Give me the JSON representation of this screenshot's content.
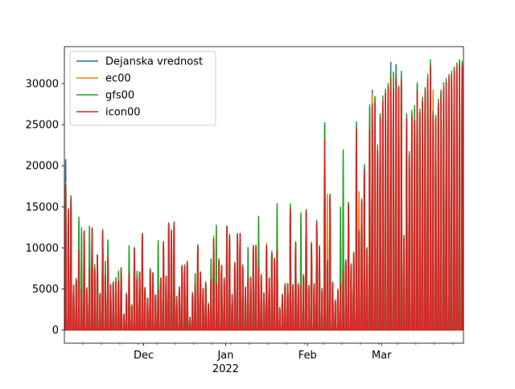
{
  "chart_data": {
    "type": "line",
    "x_start": "2021-11-01",
    "x_end": "2022-03-31",
    "ylim": [
      -1600,
      34500
    ],
    "y_ticks": [
      0,
      5000,
      10000,
      15000,
      20000,
      25000,
      30000
    ],
    "y_tick_labels": [
      "0",
      "5000",
      "10000",
      "15000",
      "20000",
      "25000",
      "30000"
    ],
    "x_major_ticks": [
      {
        "date": "2021-12-01",
        "label": "Dec",
        "sublabel": ""
      },
      {
        "date": "2022-01-01",
        "label": "Jan",
        "sublabel": "2022"
      },
      {
        "date": "2022-02-01",
        "label": "Feb",
        "sublabel": ""
      },
      {
        "date": "2022-03-01",
        "label": "Mar",
        "sublabel": ""
      }
    ],
    "legend_position": "upper-left",
    "grid": false,
    "series": [
      {
        "name": "Dejanska vrednost",
        "color": "#1f77b4"
      },
      {
        "name": "ec00",
        "color": "#ff7f0e"
      },
      {
        "name": "gfs00",
        "color": "#2ca02c"
      },
      {
        "name": "icon00",
        "color": "#d62728"
      }
    ],
    "daily_peak_estimates": {
      "dates": [
        "2021-11-01",
        "2021-11-02",
        "2021-11-03",
        "2021-11-04",
        "2021-11-05",
        "2021-11-06",
        "2021-11-07",
        "2021-11-08",
        "2021-11-09",
        "2021-11-10",
        "2021-11-11",
        "2021-11-12",
        "2021-11-13",
        "2021-11-14",
        "2021-11-15",
        "2021-11-16",
        "2021-11-17",
        "2021-11-18",
        "2021-11-19",
        "2021-11-20",
        "2021-11-21",
        "2021-11-22",
        "2021-11-23",
        "2021-11-24",
        "2021-11-25",
        "2021-11-26",
        "2021-11-27",
        "2021-11-28",
        "2021-11-29",
        "2021-11-30",
        "2021-12-01",
        "2021-12-02",
        "2021-12-03",
        "2021-12-04",
        "2021-12-05",
        "2021-12-06",
        "2021-12-07",
        "2021-12-08",
        "2021-12-09",
        "2021-12-10",
        "2021-12-11",
        "2021-12-12",
        "2021-12-13",
        "2021-12-14",
        "2021-12-15",
        "2021-12-16",
        "2021-12-17",
        "2021-12-18",
        "2021-12-19",
        "2021-12-20",
        "2021-12-21",
        "2021-12-22",
        "2021-12-23",
        "2021-12-24",
        "2021-12-25",
        "2021-12-26",
        "2021-12-27",
        "2021-12-28",
        "2021-12-29",
        "2021-12-30",
        "2021-12-31",
        "2022-01-01",
        "2022-01-02",
        "2022-01-03",
        "2022-01-04",
        "2022-01-05",
        "2022-01-06",
        "2022-01-07",
        "2022-01-08",
        "2022-01-09",
        "2022-01-10",
        "2022-01-11",
        "2022-01-12",
        "2022-01-13",
        "2022-01-14",
        "2022-01-15",
        "2022-01-16",
        "2022-01-17",
        "2022-01-18",
        "2022-01-19",
        "2022-01-20",
        "2022-01-21",
        "2022-01-22",
        "2022-01-23",
        "2022-01-24",
        "2022-01-25",
        "2022-01-26",
        "2022-01-27",
        "2022-01-28",
        "2022-01-29",
        "2022-01-30",
        "2022-01-31",
        "2022-02-01",
        "2022-02-02",
        "2022-02-03",
        "2022-02-04",
        "2022-02-05",
        "2022-02-06",
        "2022-02-07",
        "2022-02-08",
        "2022-02-09",
        "2022-02-10",
        "2022-02-11",
        "2022-02-12",
        "2022-02-13",
        "2022-02-14",
        "2022-02-15",
        "2022-02-16",
        "2022-02-17",
        "2022-02-18",
        "2022-02-19",
        "2022-02-20",
        "2022-02-21",
        "2022-02-22",
        "2022-02-23",
        "2022-02-24",
        "2022-02-25",
        "2022-02-26",
        "2022-02-27",
        "2022-02-28",
        "2022-03-01",
        "2022-03-02",
        "2022-03-03",
        "2022-03-04",
        "2022-03-05",
        "2022-03-06",
        "2022-03-07",
        "2022-03-08",
        "2022-03-09",
        "2022-03-10",
        "2022-03-11",
        "2022-03-12",
        "2022-03-13",
        "2022-03-14",
        "2022-03-15",
        "2022-03-16",
        "2022-03-17",
        "2022-03-18",
        "2022-03-19",
        "2022-03-20",
        "2022-03-21",
        "2022-03-22",
        "2022-03-23",
        "2022-03-24",
        "2022-03-25",
        "2022-03-26",
        "2022-03-27",
        "2022-03-28",
        "2022-03-29",
        "2022-03-30",
        "2022-03-31"
      ],
      "Dejanska vrednost": [
        20800,
        14800,
        16000,
        5500,
        6200,
        9700,
        5200,
        12000,
        5100,
        7800,
        12500,
        7600,
        9200,
        4500,
        12000,
        6800,
        9000,
        5500,
        5800,
        5900,
        6000,
        7600,
        1900,
        4400,
        7000,
        3000,
        10000,
        6300,
        7000,
        11800,
        5200,
        3900,
        7500,
        7000,
        4300,
        4800,
        6300,
        10800,
        6600,
        13100,
        12200,
        12900,
        4100,
        5200,
        7800,
        7800,
        8400,
        1500,
        4500,
        5800,
        10400,
        7100,
        5000,
        5800,
        3200,
        6300,
        11200,
        5800,
        8600,
        7900,
        6300,
        12700,
        11600,
        4300,
        8200,
        11700,
        11800,
        7900,
        5200,
        6400,
        6400,
        10300,
        10300,
        7800,
        6700,
        4500,
        10400,
        6300,
        9500,
        8700,
        9900,
        2700,
        4300,
        5600,
        5600,
        15000,
        5500,
        10700,
        5600,
        5600,
        6700,
        14600,
        5400,
        10600,
        5600,
        13200,
        10200,
        5000,
        25300,
        8500,
        16500,
        5800,
        3600,
        4900,
        5800,
        7400,
        8500,
        15500,
        8000,
        9400,
        25400,
        12100,
        15900,
        20000,
        10000,
        27200,
        29300,
        28400,
        22400,
        26100,
        28200,
        29100,
        29900,
        32700,
        31500,
        32400,
        29700,
        31500,
        11400,
        26100,
        21500,
        26500,
        25800,
        30000,
        26900,
        28200,
        29500,
        31000,
        32500,
        26600,
        26000,
        28000,
        29100,
        30000,
        30500,
        31000,
        31400,
        32000,
        32500,
        32800,
        32700
      ],
      "ec00": [
        18000,
        14000,
        15800,
        5300,
        6000,
        9500,
        5000,
        11800,
        5000,
        7600,
        12200,
        7400,
        9000,
        4400,
        11800,
        6700,
        8800,
        5400,
        5700,
        5800,
        5900,
        7400,
        1900,
        4300,
        6900,
        2900,
        9800,
        6200,
        6900,
        11600,
        5100,
        3800,
        7300,
        6900,
        4200,
        4700,
        6200,
        10600,
        6500,
        12800,
        12000,
        12700,
        4000,
        5100,
        7700,
        7700,
        8300,
        1500,
        4400,
        5700,
        10200,
        7000,
        4900,
        5700,
        3100,
        6200,
        11500,
        5700,
        8500,
        7800,
        6200,
        12500,
        11400,
        4200,
        8100,
        11500,
        11600,
        7800,
        5100,
        6300,
        6300,
        10200,
        10100,
        7700,
        6600,
        4400,
        10600,
        6200,
        9400,
        8600,
        9800,
        2600,
        4200,
        5500,
        5500,
        14800,
        5400,
        10500,
        5500,
        5500,
        6600,
        14400,
        5300,
        10500,
        5500,
        13000,
        10000,
        4900,
        24500,
        16600,
        16200,
        5700,
        3500,
        4800,
        5700,
        7300,
        8400,
        15200,
        7900,
        9300,
        24800,
        16900,
        15600,
        19800,
        9900,
        26700,
        28800,
        28000,
        22000,
        25700,
        27800,
        28700,
        29500,
        31500,
        30800,
        31600,
        29200,
        31000,
        11200,
        25700,
        21100,
        26100,
        25400,
        29500,
        26500,
        27800,
        29000,
        30500,
        31800,
        29300,
        25600,
        27600,
        28700,
        29600,
        30100,
        30600,
        31000,
        31600,
        32100,
        32400,
        32300
      ],
      "gfs00": [
        17500,
        14500,
        16400,
        5400,
        6300,
        13800,
        12500,
        12000,
        5200,
        12700,
        12200,
        8000,
        9000,
        4500,
        12300,
        8400,
        11000,
        5600,
        5900,
        6400,
        7200,
        7600,
        2000,
        4500,
        10300,
        3100,
        10100,
        7200,
        7100,
        11500,
        5100,
        3900,
        7200,
        7000,
        4300,
        10900,
        6400,
        6500,
        6600,
        13000,
        11000,
        12700,
        4100,
        5300,
        7900,
        8000,
        8400,
        1600,
        4600,
        6900,
        10200,
        7100,
        5100,
        5900,
        3300,
        8700,
        11100,
        12800,
        8700,
        7900,
        6400,
        12600,
        11700,
        4400,
        8300,
        11800,
        11600,
        8000,
        5300,
        10100,
        6500,
        10300,
        10400,
        13900,
        6800,
        4600,
        10200,
        6400,
        9600,
        8800,
        15400,
        2800,
        4400,
        5700,
        5700,
        15400,
        5600,
        10800,
        5700,
        14300,
        6800,
        14700,
        5500,
        10700,
        5700,
        13400,
        10300,
        5100,
        25000,
        8600,
        16600,
        5900,
        3700,
        5000,
        15000,
        22000,
        8600,
        15600,
        8100,
        9500,
        25000,
        12200,
        16000,
        20200,
        10100,
        27500,
        26800,
        28500,
        22600,
        26400,
        28600,
        29400,
        30100,
        31800,
        30800,
        32000,
        29800,
        31600,
        11600,
        26400,
        21800,
        26800,
        27400,
        30200,
        27000,
        28400,
        29600,
        31200,
        33000,
        26800,
        26200,
        28200,
        29300,
        30200,
        30700,
        31200,
        31600,
        32100,
        32600,
        33000,
        32800
      ],
      "icon00": [
        17700,
        14700,
        16100,
        5300,
        6100,
        9800,
        5000,
        12100,
        5000,
        7700,
        12400,
        7500,
        9100,
        4400,
        12100,
        6800,
        8900,
        5400,
        5800,
        5900,
        6000,
        7500,
        1900,
        4300,
        6900,
        3000,
        9900,
        6300,
        7000,
        11700,
        5100,
        3800,
        7400,
        6900,
        4300,
        4800,
        6300,
        10700,
        6500,
        13000,
        12100,
        13200,
        4000,
        5200,
        7800,
        7800,
        8300,
        1500,
        4400,
        5700,
        10300,
        7000,
        5000,
        5700,
        3100,
        6200,
        11100,
        5700,
        8500,
        7800,
        6200,
        12600,
        11500,
        4200,
        8100,
        11600,
        11700,
        7800,
        5100,
        6300,
        6300,
        10300,
        10200,
        7700,
        6700,
        4400,
        10300,
        6200,
        9400,
        8600,
        9800,
        2600,
        4200,
        5500,
        5500,
        14800,
        5400,
        10600,
        5500,
        5500,
        6600,
        14500,
        5300,
        10500,
        5500,
        13100,
        10100,
        4900,
        23200,
        8400,
        16300,
        5700,
        3500,
        4800,
        5700,
        7300,
        8400,
        15300,
        7900,
        9300,
        24500,
        12000,
        15700,
        19600,
        9900,
        24400,
        27600,
        27700,
        22000,
        25800,
        27900,
        28900,
        29600,
        30600,
        29300,
        30700,
        29500,
        30500,
        11300,
        25800,
        21300,
        26200,
        25600,
        29200,
        26600,
        27900,
        29200,
        30600,
        32200,
        26300,
        25700,
        27700,
        28800,
        29600,
        30200,
        30800,
        31200,
        31700,
        32200,
        32500,
        32300
      ]
    }
  }
}
